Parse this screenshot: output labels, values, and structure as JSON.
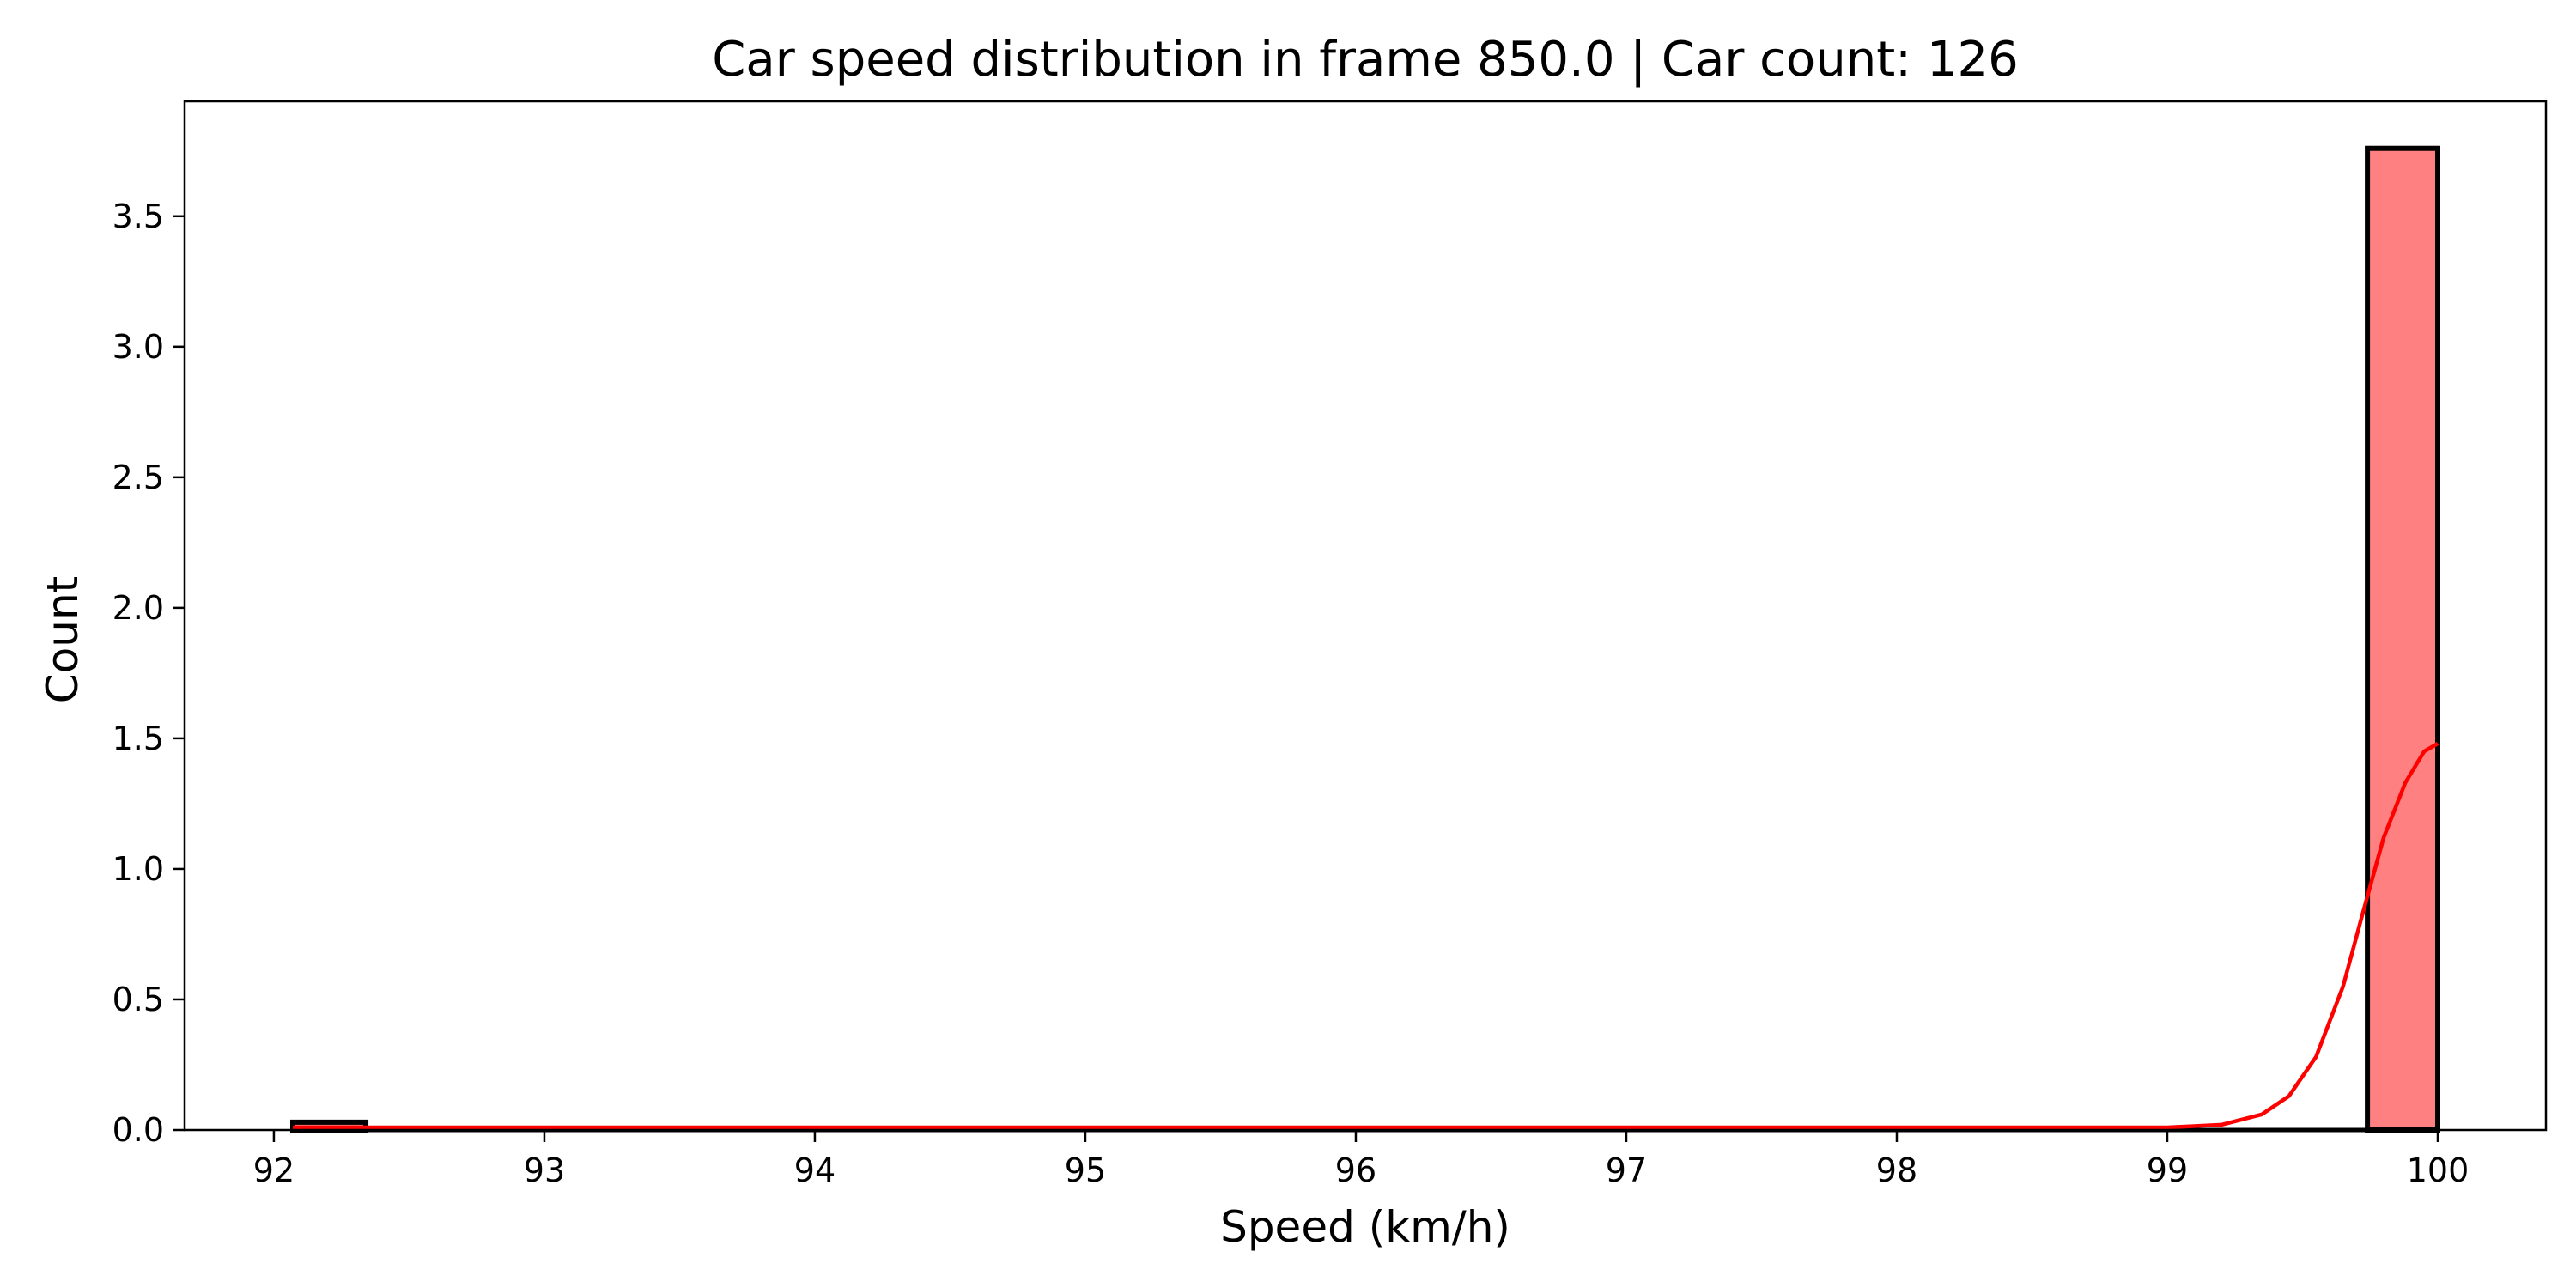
{
  "chart_data": {
    "type": "bar",
    "title": "Car speed distribution in frame 850.0 | Car count: 126",
    "xlabel": "Speed (km/h)",
    "ylabel": "Count",
    "xlim": [
      91.67,
      100.4
    ],
    "ylim": [
      0,
      3.94
    ],
    "x_ticks": [
      92,
      93,
      94,
      95,
      96,
      97,
      98,
      99,
      100
    ],
    "x_tick_labels": [
      "92",
      "93",
      "94",
      "95",
      "96",
      "97",
      "98",
      "99",
      "100"
    ],
    "y_ticks": [
      0.0,
      0.5,
      1.0,
      1.5,
      2.0,
      2.5,
      3.0,
      3.5
    ],
    "y_tick_labels": [
      "0.0",
      "0.5",
      "1.0",
      "1.5",
      "2.0",
      "2.5",
      "3.0",
      "3.5"
    ],
    "bins": [
      {
        "x0": 92.07,
        "x1": 92.34,
        "count": 0.03
      },
      {
        "x0": 99.74,
        "x1": 100.0,
        "count": 3.76
      }
    ],
    "kde": {
      "x": [
        92.07,
        95.0,
        98.5,
        99.0,
        99.2,
        99.35,
        99.45,
        99.55,
        99.65,
        99.72,
        99.8,
        99.88,
        99.95,
        100.0
      ],
      "y": [
        0.01,
        0.01,
        0.01,
        0.01,
        0.02,
        0.06,
        0.13,
        0.28,
        0.55,
        0.82,
        1.12,
        1.33,
        1.45,
        1.48
      ]
    },
    "colors": {
      "bar_fill": "#ff8080",
      "bar_edge": "#000000",
      "kde_line": "#ff0000"
    },
    "grid": false,
    "legend": "none"
  }
}
